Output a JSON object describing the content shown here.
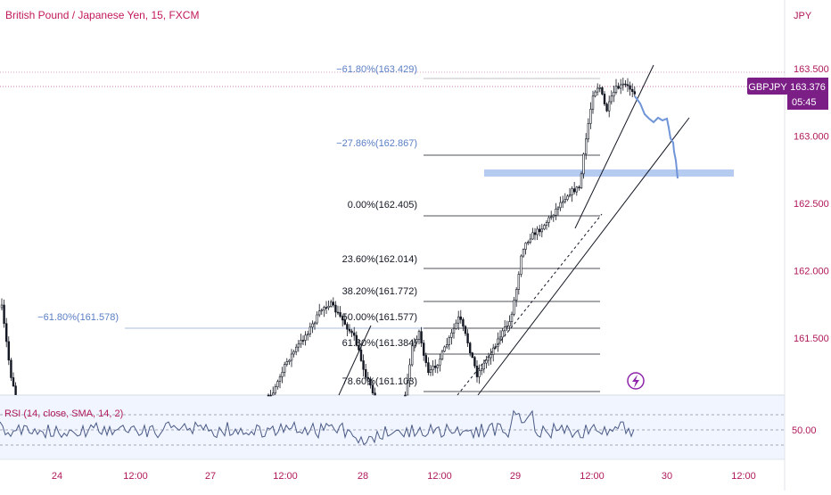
{
  "header": {
    "title": "British Pound / Japanese Yen, 15, FXCM"
  },
  "price_axis": {
    "currency": "JPY",
    "ticks": [
      "163.500",
      "163.000",
      "162.500",
      "162.000",
      "161.500"
    ],
    "tick_values": [
      163.5,
      163.0,
      162.5,
      162.0,
      161.5
    ]
  },
  "time_axis": {
    "labels": [
      "24",
      "12:00",
      "27",
      "12:00",
      "28",
      "12:00",
      "29",
      "12:00",
      "30",
      "12:00"
    ]
  },
  "price_badge": {
    "symbol": "GBPJPY",
    "price": "163.376",
    "countdown": "05:45"
  },
  "rsi": {
    "label": "RSI (14, close, SMA, 14, 2)",
    "tick": "50.00"
  },
  "fib_labels": {
    "upper_ext_618": "−61.80%(163.429)",
    "upper_ext_2786": "−27.86%(162.867)",
    "lvl_0": "0.00%(162.405)",
    "lvl_236": "23.60%(162.014)",
    "lvl_382": "38.20%(161.772)",
    "lvl_50": "50.00%(161.577)",
    "lvl_618": "61.80%(161.384)",
    "lvl_786": "78.60%(161.103)",
    "left_ext_618": "−61.80%(161.578)"
  },
  "colors": {
    "title": "#c2185b",
    "axis_text": "#b0185a",
    "candles": "#131722",
    "fib_lines": "#131722",
    "fib_ext_label": "#5b7fc4",
    "projection": "#6f94d8",
    "zone": "#a8c2ec",
    "rsi_line": "#4a5a86",
    "rsi_bg": "#f1f5ff",
    "badge_bg": "#7b1f86",
    "last_price_line": "#b1508a",
    "lightning": "#8e24aa"
  },
  "chart_data": {
    "type": "candlestick",
    "symbol": "GBPJPY",
    "interval": "15",
    "y_axis_range": [
      161.15,
      163.72
    ],
    "last_price": 163.376,
    "fibonacci_levels": [
      {
        "label": "−61.80%",
        "price": 163.429
      },
      {
        "label": "−27.86%",
        "price": 162.867
      },
      {
        "label": "0.00%",
        "price": 162.405
      },
      {
        "label": "23.60%",
        "price": 162.014
      },
      {
        "label": "38.20%",
        "price": 161.772
      },
      {
        "label": "50.00%",
        "price": 161.577
      },
      {
        "label": "61.80%",
        "price": 161.384
      },
      {
        "label": "78.60%",
        "price": 161.103
      }
    ],
    "left_fib_extension": {
      "label": "−61.80%",
      "price": 161.578
    },
    "support_zone_price": 162.7,
    "approx_closes": {
      "x": [
        "24",
        "12:00",
        "27",
        "12:00",
        "28",
        "12:00",
        "29",
        "12:00",
        "30"
      ],
      "close": [
        161.2,
        null,
        null,
        161.55,
        161.6,
        161.4,
        161.5,
        163.3,
        163.0
      ]
    }
  }
}
